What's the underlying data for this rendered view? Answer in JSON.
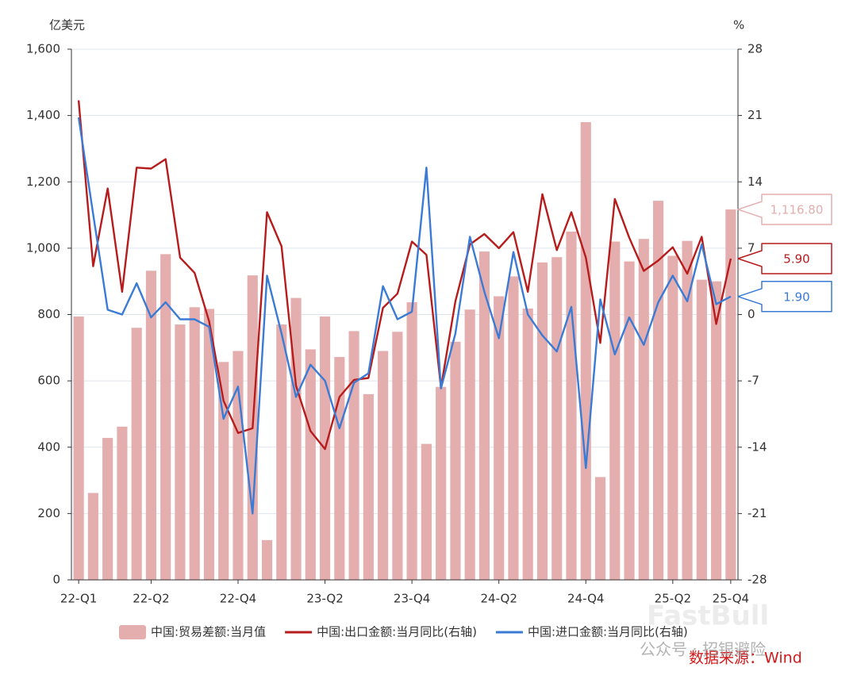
{
  "chart_data": {
    "type": "combo",
    "y_axis_label": "亿美元",
    "y2_axis_label": "%",
    "categories": [
      "22-Q1",
      null,
      null,
      null,
      null,
      "22-Q2",
      null,
      null,
      null,
      null,
      null,
      "22-Q4",
      null,
      null,
      null,
      null,
      null,
      "23-Q2",
      null,
      null,
      null,
      null,
      null,
      "23-Q4",
      null,
      null,
      null,
      null,
      null,
      "24-Q2",
      null,
      null,
      null,
      null,
      null,
      "24-Q4",
      null,
      null,
      null,
      null,
      null,
      "25-Q2",
      null,
      null,
      null,
      "25-Q4"
    ],
    "series": [
      {
        "name": "中国:贸易差额:当月值",
        "type": "bar",
        "axis": "y",
        "color": "#e5aeae",
        "values": [
          794,
          262,
          428,
          462,
          760,
          932,
          982,
          770,
          822,
          817,
          657,
          690,
          918,
          120,
          770,
          850,
          695,
          794,
          672,
          750,
          560,
          690,
          748,
          837,
          410,
          582,
          718,
          815,
          990,
          855,
          915,
          818,
          957,
          973,
          1050,
          1380,
          310,
          1020,
          960,
          1028,
          1143,
          977,
          1022,
          905,
          900,
          1116.8
        ],
        "value_labels": [
          null,
          null,
          null,
          null,
          null,
          null,
          null,
          null,
          null,
          null,
          null,
          null,
          null,
          null,
          null,
          null,
          null,
          null,
          null,
          null,
          null,
          null,
          null,
          null,
          null,
          null,
          null,
          null,
          null,
          null,
          null,
          null,
          null,
          null,
          null,
          null,
          null,
          null,
          null,
          null,
          null,
          null,
          null,
          null,
          null,
          "1,116.80"
        ]
      },
      {
        "name": "中国:出口金额:当月同比(右轴)",
        "type": "line",
        "axis": "y2",
        "color": "#b71c1c",
        "values": [
          22.6,
          5.1,
          13.3,
          2.4,
          15.5,
          15.4,
          16.4,
          6.0,
          4.4,
          -0.7,
          -9.1,
          -12.5,
          -12.0,
          10.8,
          7.2,
          -7.5,
          -12.3,
          -14.2,
          -8.7,
          -6.9,
          -6.7,
          0.7,
          2.2,
          7.7,
          6.3,
          -7.7,
          1.4,
          7.4,
          8.5,
          7.0,
          8.7,
          2.4,
          12.7,
          6.8,
          10.8,
          6.0,
          -3.0,
          12.2,
          8.1,
          4.6,
          5.7,
          7.1,
          4.3,
          8.2,
          -1.0,
          5.9
        ],
        "value_labels": [
          null,
          null,
          null,
          null,
          null,
          null,
          null,
          null,
          null,
          null,
          null,
          null,
          null,
          null,
          null,
          null,
          null,
          null,
          null,
          null,
          null,
          null,
          null,
          null,
          null,
          null,
          null,
          null,
          null,
          null,
          null,
          null,
          null,
          null,
          null,
          null,
          null,
          null,
          null,
          null,
          null,
          null,
          null,
          null,
          null,
          "5.90"
        ]
      },
      {
        "name": "中国:进口金额:当月同比(右轴)",
        "type": "line",
        "axis": "y2",
        "color": "#3a7bd5",
        "values": [
          20.8,
          10.6,
          0.5,
          0,
          3.3,
          -0.3,
          1.3,
          -0.5,
          -0.5,
          -1.3,
          -11.0,
          -7.6,
          -21.0,
          4.1,
          -2.0,
          -8.7,
          -5.3,
          -7.0,
          -12.0,
          -7.2,
          -6.2,
          3.0,
          -0.5,
          0.3,
          15.5,
          -7.8,
          -2.0,
          8.2,
          2.4,
          -2.5,
          6.6,
          0,
          -2.2,
          -3.9,
          0.8,
          -16.2,
          1.6,
          -4.2,
          -0.3,
          -3.2,
          1.3,
          4.1,
          1.4,
          7.4,
          1.1,
          1.9
        ],
        "value_labels": [
          null,
          null,
          null,
          null,
          null,
          null,
          null,
          null,
          null,
          null,
          null,
          null,
          null,
          null,
          null,
          null,
          null,
          null,
          null,
          null,
          null,
          null,
          null,
          null,
          null,
          null,
          null,
          null,
          null,
          null,
          null,
          null,
          null,
          null,
          null,
          null,
          null,
          null,
          null,
          null,
          null,
          null,
          null,
          null,
          null,
          "1.90"
        ]
      }
    ],
    "ylim": [
      0,
      1600
    ],
    "yticks": [
      0,
      200,
      400,
      600,
      800,
      {
        "value": 1000,
        "label": "1,000"
      },
      {
        "value": 1200,
        "label": "1,200"
      },
      {
        "value": 1400,
        "label": "1,400"
      },
      {
        "value": 1600,
        "label": "1,600"
      }
    ],
    "y2lim": [
      -28,
      28
    ],
    "y2ticks": [
      -28,
      -21,
      -14,
      -7,
      0,
      7,
      14,
      21,
      28
    ],
    "grid": true,
    "legend": "bottom",
    "source": "数据来源：Wind",
    "watermarks": [
      "公众号 · 招银避险",
      "FastBull"
    ]
  }
}
